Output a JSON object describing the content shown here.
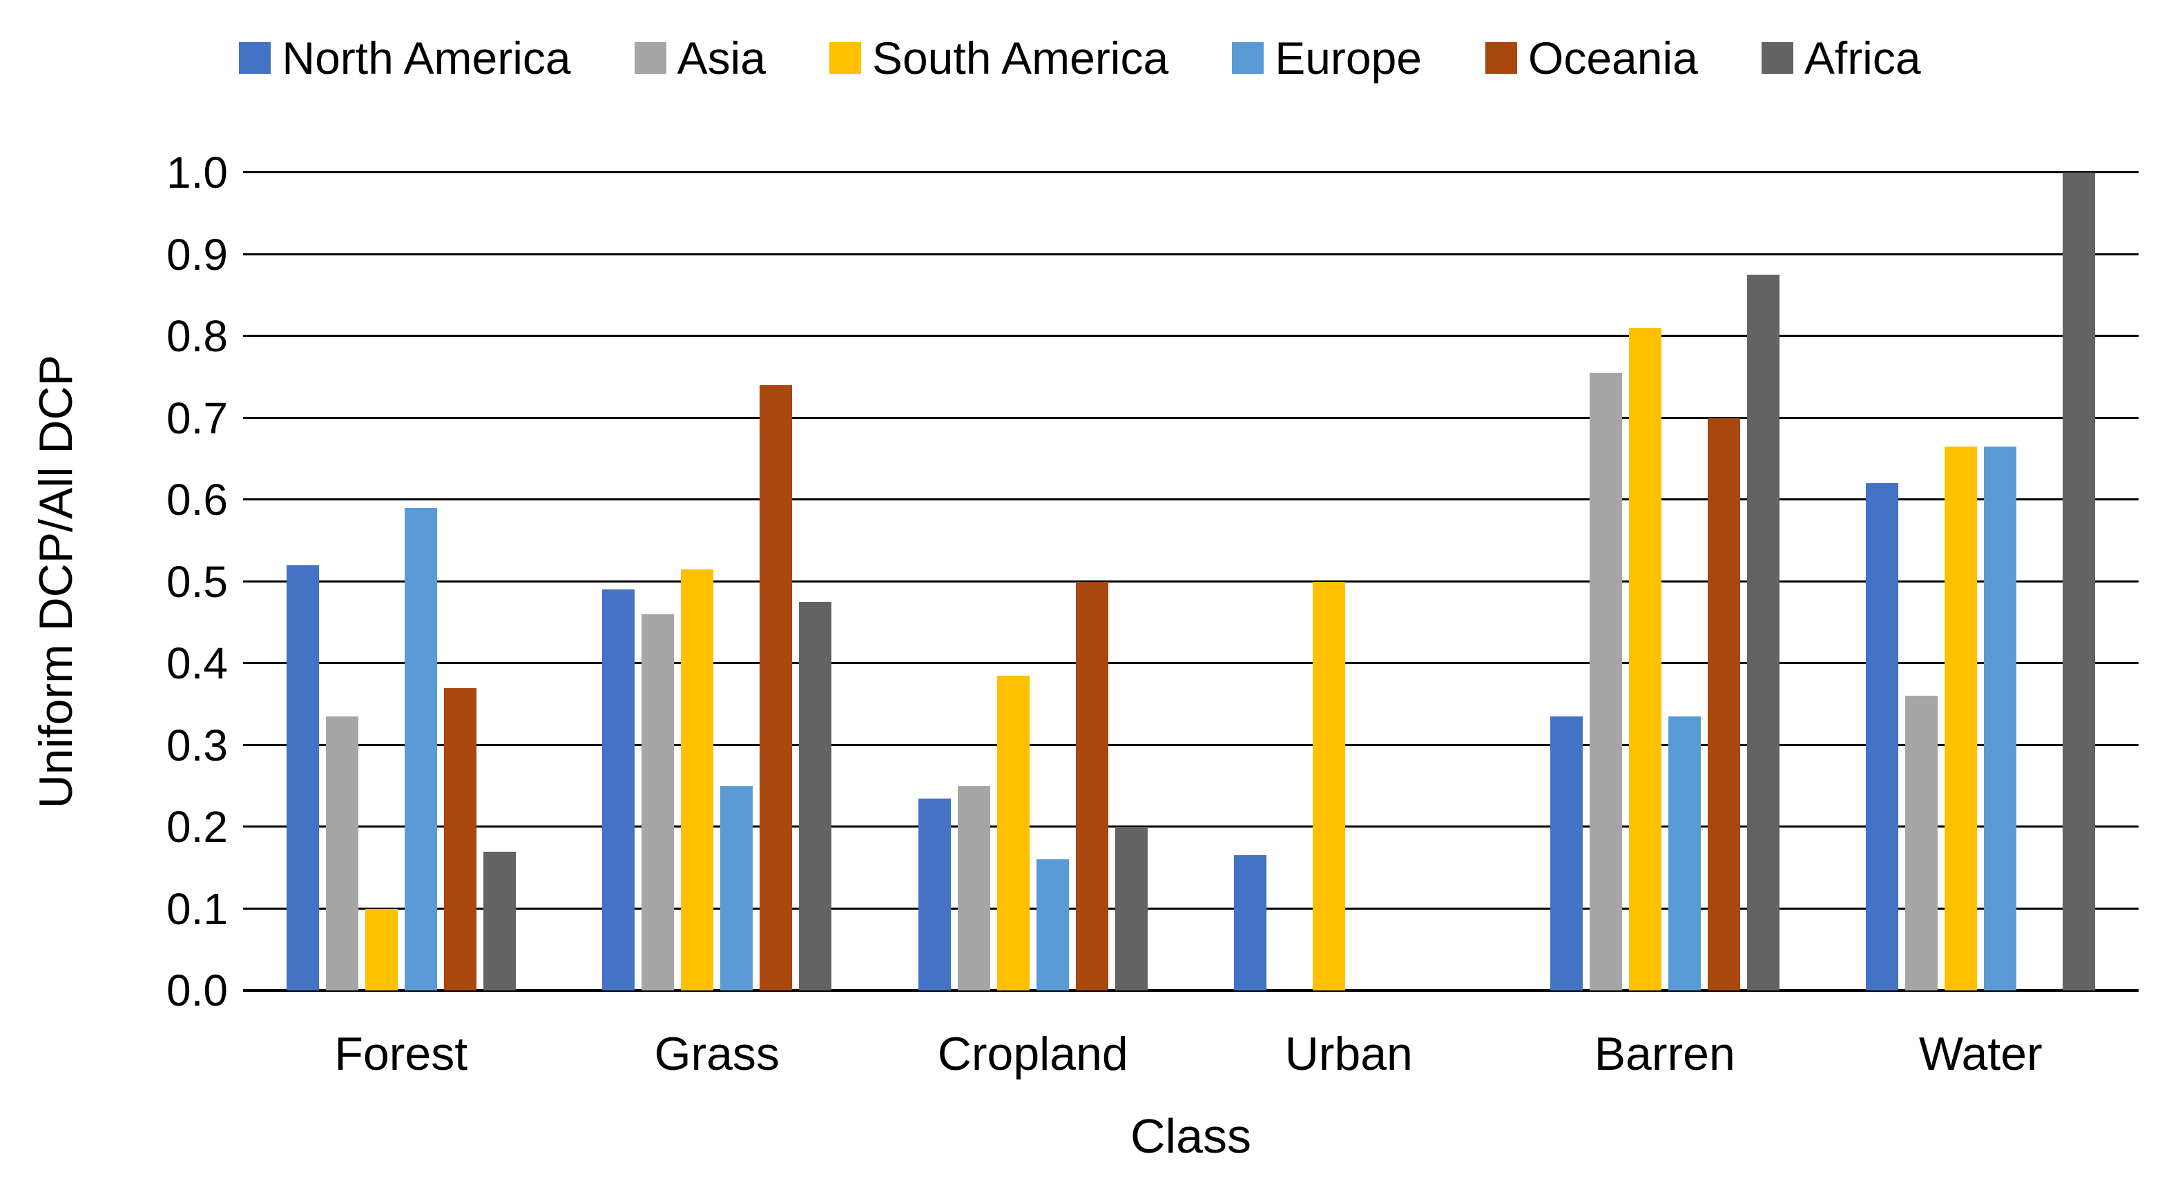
{
  "chart_data": {
    "type": "bar",
    "title": "",
    "xlabel": "Class",
    "ylabel": "Uniform DCP/All DCP",
    "ylim": [
      0,
      1
    ],
    "ytick_step": 0.1,
    "ytick_decimals": 1,
    "grid": "horizontal",
    "gridline_color": "#000000",
    "legend_position": "top",
    "categories": [
      "Forest",
      "Grass",
      "Cropland",
      "Urban",
      "Barren",
      "Water"
    ],
    "series": [
      {
        "name": "North America",
        "color": "#4472C4",
        "values": [
          0.52,
          0.49,
          0.235,
          0.165,
          0.335,
          0.62
        ]
      },
      {
        "name": "Asia",
        "color": "#A6A6A6",
        "values": [
          0.335,
          0.46,
          0.25,
          0,
          0.755,
          0.36
        ]
      },
      {
        "name": "South America",
        "color": "#FFC000",
        "values": [
          0.1,
          0.515,
          0.385,
          0.5,
          0.81,
          0.665
        ]
      },
      {
        "name": "Europe",
        "color": "#5B9BD5",
        "values": [
          0.59,
          0.25,
          0.16,
          0,
          0.335,
          0.665
        ]
      },
      {
        "name": "Oceania",
        "color": "#A8480E",
        "values": [
          0.37,
          0.74,
          0.5,
          0,
          0.7,
          0
        ]
      },
      {
        "name": "Africa",
        "color": "#636363",
        "values": [
          0.17,
          0.475,
          0.2,
          0,
          0.875,
          1.0
        ]
      }
    ]
  }
}
